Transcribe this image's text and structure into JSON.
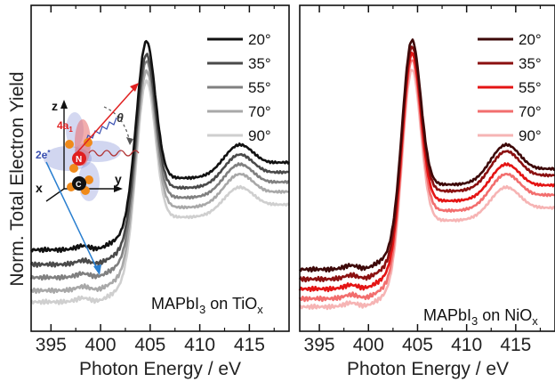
{
  "chart_data": {
    "type": "line",
    "ylabel": "Norm. Total Electron Yield",
    "xlabel": "Photon Energy / eV",
    "panels": [
      {
        "annotation_main": "MAPbI",
        "annotation_sub3": "3",
        "annotation_on": " on TiO",
        "annotation_subx": "x",
        "xlim": [
          393,
          419
        ],
        "ylim": [
          0,
          1
        ],
        "xticks": [
          395,
          400,
          405,
          410,
          415
        ],
        "xtick_labels": [
          "395",
          "400",
          "405",
          "410",
          "415"
        ],
        "legend_location": "top-right",
        "series": [
          {
            "name": "20°",
            "color": "#111111",
            "offset": 0.25,
            "peak": 0.9,
            "post": 0.47,
            "hump": 0.57,
            "end": 0.52
          },
          {
            "name": "35°",
            "color": "#4a4a4a",
            "offset": 0.205,
            "peak": 0.86,
            "post": 0.44,
            "hump": 0.54,
            "end": 0.49
          },
          {
            "name": "55°",
            "color": "#808080",
            "offset": 0.165,
            "peak": 0.84,
            "post": 0.41,
            "hump": 0.51,
            "end": 0.46
          },
          {
            "name": "70°",
            "color": "#a8a8a8",
            "offset": 0.125,
            "peak": 0.81,
            "post": 0.38,
            "hump": 0.48,
            "end": 0.43
          },
          {
            "name": "90°",
            "color": "#cfcfcf",
            "offset": 0.09,
            "peak": 0.78,
            "post": 0.35,
            "hump": 0.44,
            "end": 0.39
          }
        ]
      },
      {
        "annotation_main": "MAPbI",
        "annotation_sub3": "3",
        "annotation_on": " on NiO",
        "annotation_subx": "x",
        "xlim": [
          393,
          419
        ],
        "ylim": [
          0,
          1
        ],
        "xticks": [
          395,
          400,
          405,
          410,
          415
        ],
        "xtick_labels": [
          "395",
          "400",
          "405",
          "410",
          "415"
        ],
        "legend_location": "top-right",
        "series": [
          {
            "name": "20°",
            "color": "#3d0808",
            "offset": 0.19,
            "peak": 0.91,
            "post": 0.45,
            "hump": 0.57,
            "end": 0.5
          },
          {
            "name": "35°",
            "color": "#8b1010",
            "offset": 0.16,
            "peak": 0.89,
            "post": 0.43,
            "hump": 0.55,
            "end": 0.48
          },
          {
            "name": "55°",
            "color": "#e41414",
            "offset": 0.13,
            "peak": 0.87,
            "post": 0.4,
            "hump": 0.51,
            "end": 0.45
          },
          {
            "name": "70°",
            "color": "#f26e6e",
            "offset": 0.1,
            "peak": 0.85,
            "post": 0.37,
            "hump": 0.48,
            "end": 0.42
          },
          {
            "name": "90°",
            "color": "#f6b4b4",
            "offset": 0.075,
            "peak": 0.82,
            "post": 0.34,
            "hump": 0.44,
            "end": 0.38
          }
        ]
      }
    ],
    "inset": {
      "labels": [
        "4a",
        "1",
        "2e",
        "*",
        "N",
        "θ",
        "z",
        "y",
        "x"
      ],
      "colors": {
        "red_arrow": "#e02020",
        "blue_arrow": "#2a7fd0",
        "orbital_red": "#e86a6a",
        "orbital_blue": "#6f7fcf",
        "atom_orange": "#f08a1a",
        "atom_N": "#e01f1f",
        "atom_C": "#111111"
      }
    }
  }
}
